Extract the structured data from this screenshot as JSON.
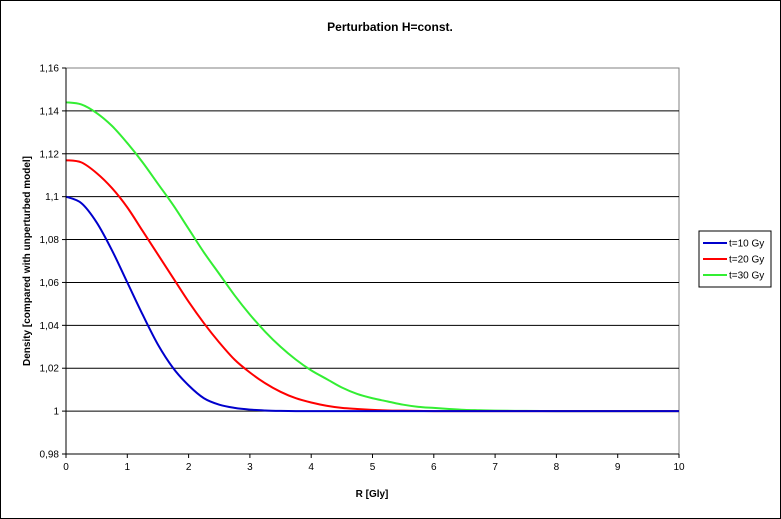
{
  "chart_data": {
    "type": "line",
    "title": "Perturbation H=const.",
    "xlabel": "R [Gly]",
    "ylabel": "Density [compared with unperturbed model]",
    "xlim": [
      0,
      10
    ],
    "ylim": [
      0.98,
      1.16
    ],
    "x_ticks": [
      "0",
      "1",
      "2",
      "3",
      "4",
      "5",
      "6",
      "7",
      "8",
      "9",
      "10"
    ],
    "y_ticks": [
      "0,98",
      "1",
      "1,02",
      "1,04",
      "1,06",
      "1,08",
      "1,1",
      "1,12",
      "1,14",
      "1,16"
    ],
    "grid": "horizontal",
    "legend_position": "right",
    "x": [
      0,
      0.25,
      0.5,
      0.75,
      1,
      1.25,
      1.5,
      1.75,
      2,
      2.25,
      2.5,
      2.75,
      3,
      3.25,
      3.5,
      3.75,
      4,
      4.25,
      4.5,
      4.75,
      5,
      5.25,
      5.5,
      5.75,
      6,
      6.25,
      6.5,
      6.75,
      7,
      7.5,
      8,
      8.5,
      9,
      9.5,
      10
    ],
    "series": [
      {
        "name": "t=10 Gy",
        "color": "#0000cc",
        "values": [
          1.1,
          1.097,
          1.088,
          1.075,
          1.06,
          1.045,
          1.031,
          1.02,
          1.012,
          1.006,
          1.003,
          1.0015,
          1.0007,
          1.0003,
          1.0001,
          1.0,
          1.0,
          1.0,
          1.0,
          1.0,
          1.0,
          1.0,
          1.0,
          1.0,
          1.0,
          1.0,
          1.0,
          1.0,
          1.0,
          1.0,
          1.0,
          1.0,
          1.0,
          1.0,
          1.0
        ]
      },
      {
        "name": "t=20 Gy",
        "color": "#ff0000",
        "values": [
          1.117,
          1.116,
          1.111,
          1.104,
          1.095,
          1.084,
          1.073,
          1.062,
          1.051,
          1.041,
          1.032,
          1.024,
          1.018,
          1.013,
          1.009,
          1.006,
          1.004,
          1.0025,
          1.0015,
          1.001,
          1.0006,
          1.0003,
          1.0002,
          1.0001,
          1.0,
          1.0,
          1.0,
          1.0,
          1.0,
          1.0,
          1.0,
          1.0,
          1.0,
          1.0,
          1.0
        ]
      },
      {
        "name": "t=30 Gy",
        "color": "#33ee33",
        "values": [
          1.144,
          1.143,
          1.139,
          1.133,
          1.125,
          1.116,
          1.106,
          1.096,
          1.085,
          1.074,
          1.064,
          1.054,
          1.045,
          1.037,
          1.03,
          1.024,
          1.019,
          1.015,
          1.011,
          1.008,
          1.006,
          1.0045,
          1.003,
          1.002,
          1.0015,
          1.001,
          1.0006,
          1.0004,
          1.0002,
          1.0001,
          1.0,
          1.0,
          1.0,
          1.0,
          1.0
        ]
      }
    ]
  }
}
